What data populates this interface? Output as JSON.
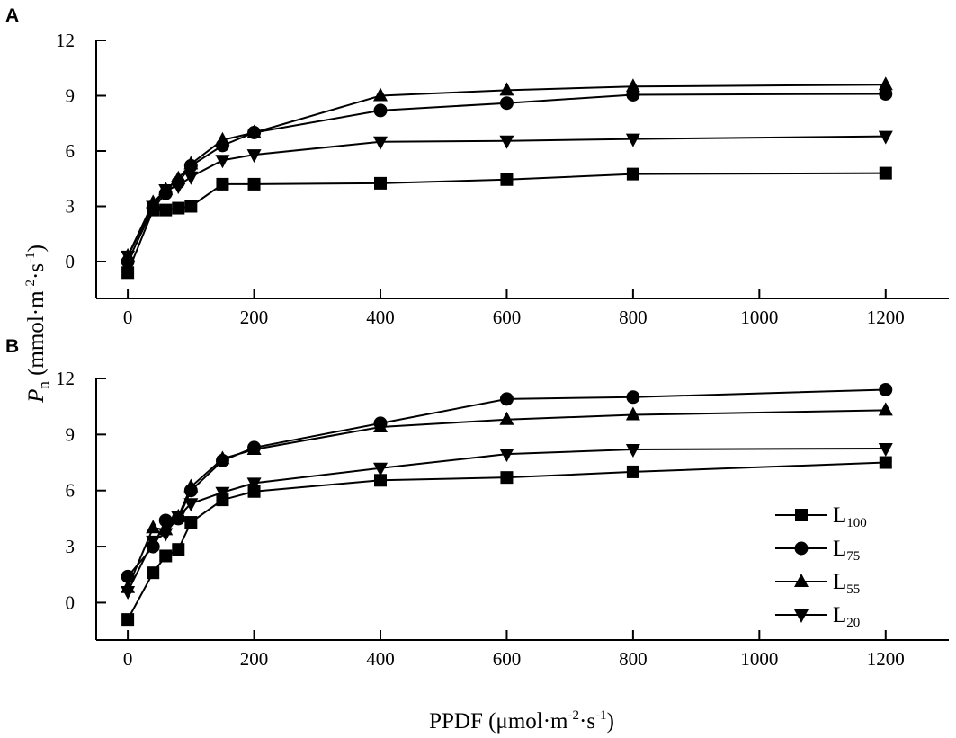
{
  "chart_data": [
    {
      "type": "line",
      "panel_label": "A",
      "x": [
        0,
        40,
        60,
        80,
        100,
        150,
        200,
        400,
        600,
        800,
        1200
      ],
      "xlim": [
        -50,
        1300
      ],
      "ylim": [
        -2,
        12
      ],
      "xticks": [
        0,
        200,
        400,
        600,
        800,
        1000,
        1200
      ],
      "yticks": [
        0,
        3,
        6,
        9,
        12
      ],
      "grid": false,
      "series": [
        {
          "marker": "square",
          "values": [
            -0.6,
            2.8,
            2.8,
            2.9,
            3.0,
            4.2,
            4.2,
            4.25,
            4.45,
            4.75,
            4.8
          ]
        },
        {
          "marker": "circle",
          "values": [
            0.0,
            2.9,
            3.7,
            4.3,
            5.2,
            6.3,
            7.0,
            8.2,
            8.6,
            9.05,
            9.1
          ]
        },
        {
          "marker": "triangle-up",
          "values": [
            0.3,
            3.2,
            3.9,
            4.5,
            5.3,
            6.6,
            7.0,
            9.0,
            9.3,
            9.5,
            9.6
          ]
        },
        {
          "marker": "triangle-down",
          "values": [
            0.3,
            3.0,
            3.9,
            4.1,
            4.6,
            5.5,
            5.8,
            6.5,
            6.55,
            6.65,
            6.8
          ]
        }
      ]
    },
    {
      "type": "line",
      "panel_label": "B",
      "x": [
        0,
        40,
        60,
        80,
        100,
        150,
        200,
        400,
        600,
        800,
        1200
      ],
      "xlim": [
        -50,
        1300
      ],
      "ylim": [
        -2,
        12
      ],
      "xticks": [
        0,
        200,
        400,
        600,
        800,
        1000,
        1200
      ],
      "yticks": [
        0,
        3,
        6,
        9,
        12
      ],
      "grid": false,
      "legend_position": "bottom-right",
      "series": [
        {
          "name": "L",
          "subscript": "100",
          "marker": "square",
          "values": [
            -0.9,
            1.6,
            2.5,
            2.85,
            4.3,
            5.5,
            5.95,
            6.55,
            6.7,
            7.0,
            7.5
          ]
        },
        {
          "name": "L",
          "subscript": "75",
          "marker": "circle",
          "values": [
            1.4,
            3.0,
            4.4,
            4.5,
            6.0,
            7.6,
            8.3,
            9.6,
            10.9,
            11.0,
            11.4
          ]
        },
        {
          "name": "L",
          "subscript": "55",
          "marker": "triangle-up",
          "values": [
            0.8,
            4.0,
            3.9,
            4.6,
            6.2,
            7.7,
            8.2,
            9.4,
            9.8,
            10.05,
            10.3
          ]
        },
        {
          "name": "L",
          "subscript": "20",
          "marker": "triangle-down",
          "values": [
            0.6,
            3.3,
            3.7,
            4.6,
            5.3,
            5.9,
            6.4,
            7.2,
            7.95,
            8.2,
            8.25
          ]
        }
      ]
    }
  ],
  "ylabel": {
    "italic": "P",
    "sub": "n",
    "rest": " (mmol·m",
    "sup1": "-2",
    "mid": "·s",
    "sup2": "-1",
    "end": ")"
  },
  "xlabel": {
    "pre": "PPDF (μmol·m",
    "sup1": "-2",
    "mid": "·s",
    "sup2": "-1",
    "end": ")"
  },
  "colors": {
    "line": "#000000",
    "marker": "#000000"
  }
}
